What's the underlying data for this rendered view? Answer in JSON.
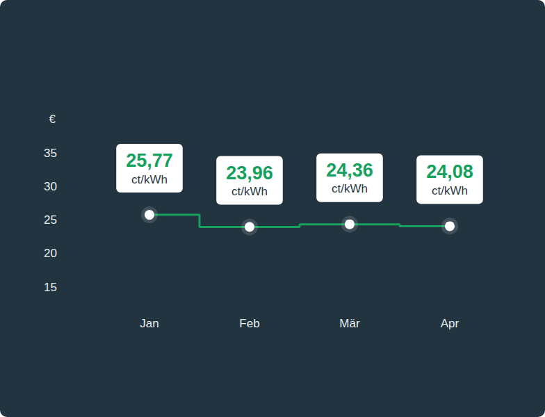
{
  "chart_data": {
    "type": "line",
    "y_label": "€",
    "categories": [
      "Jan",
      "Feb",
      "Mär",
      "Apr"
    ],
    "values": [
      25.77,
      23.96,
      24.36,
      24.08
    ],
    "value_labels": [
      "25,77 ct/kWh",
      "23,96 ct/kWh",
      "24,36 ct/kWh",
      "24,08 ct/kWh"
    ],
    "color": "#16a05e",
    "line_style": "step",
    "marker": "circle",
    "ylim": [
      15,
      35
    ],
    "yticks": [
      15,
      20,
      25,
      30,
      35
    ],
    "grid": false,
    "data_labels": true
  }
}
